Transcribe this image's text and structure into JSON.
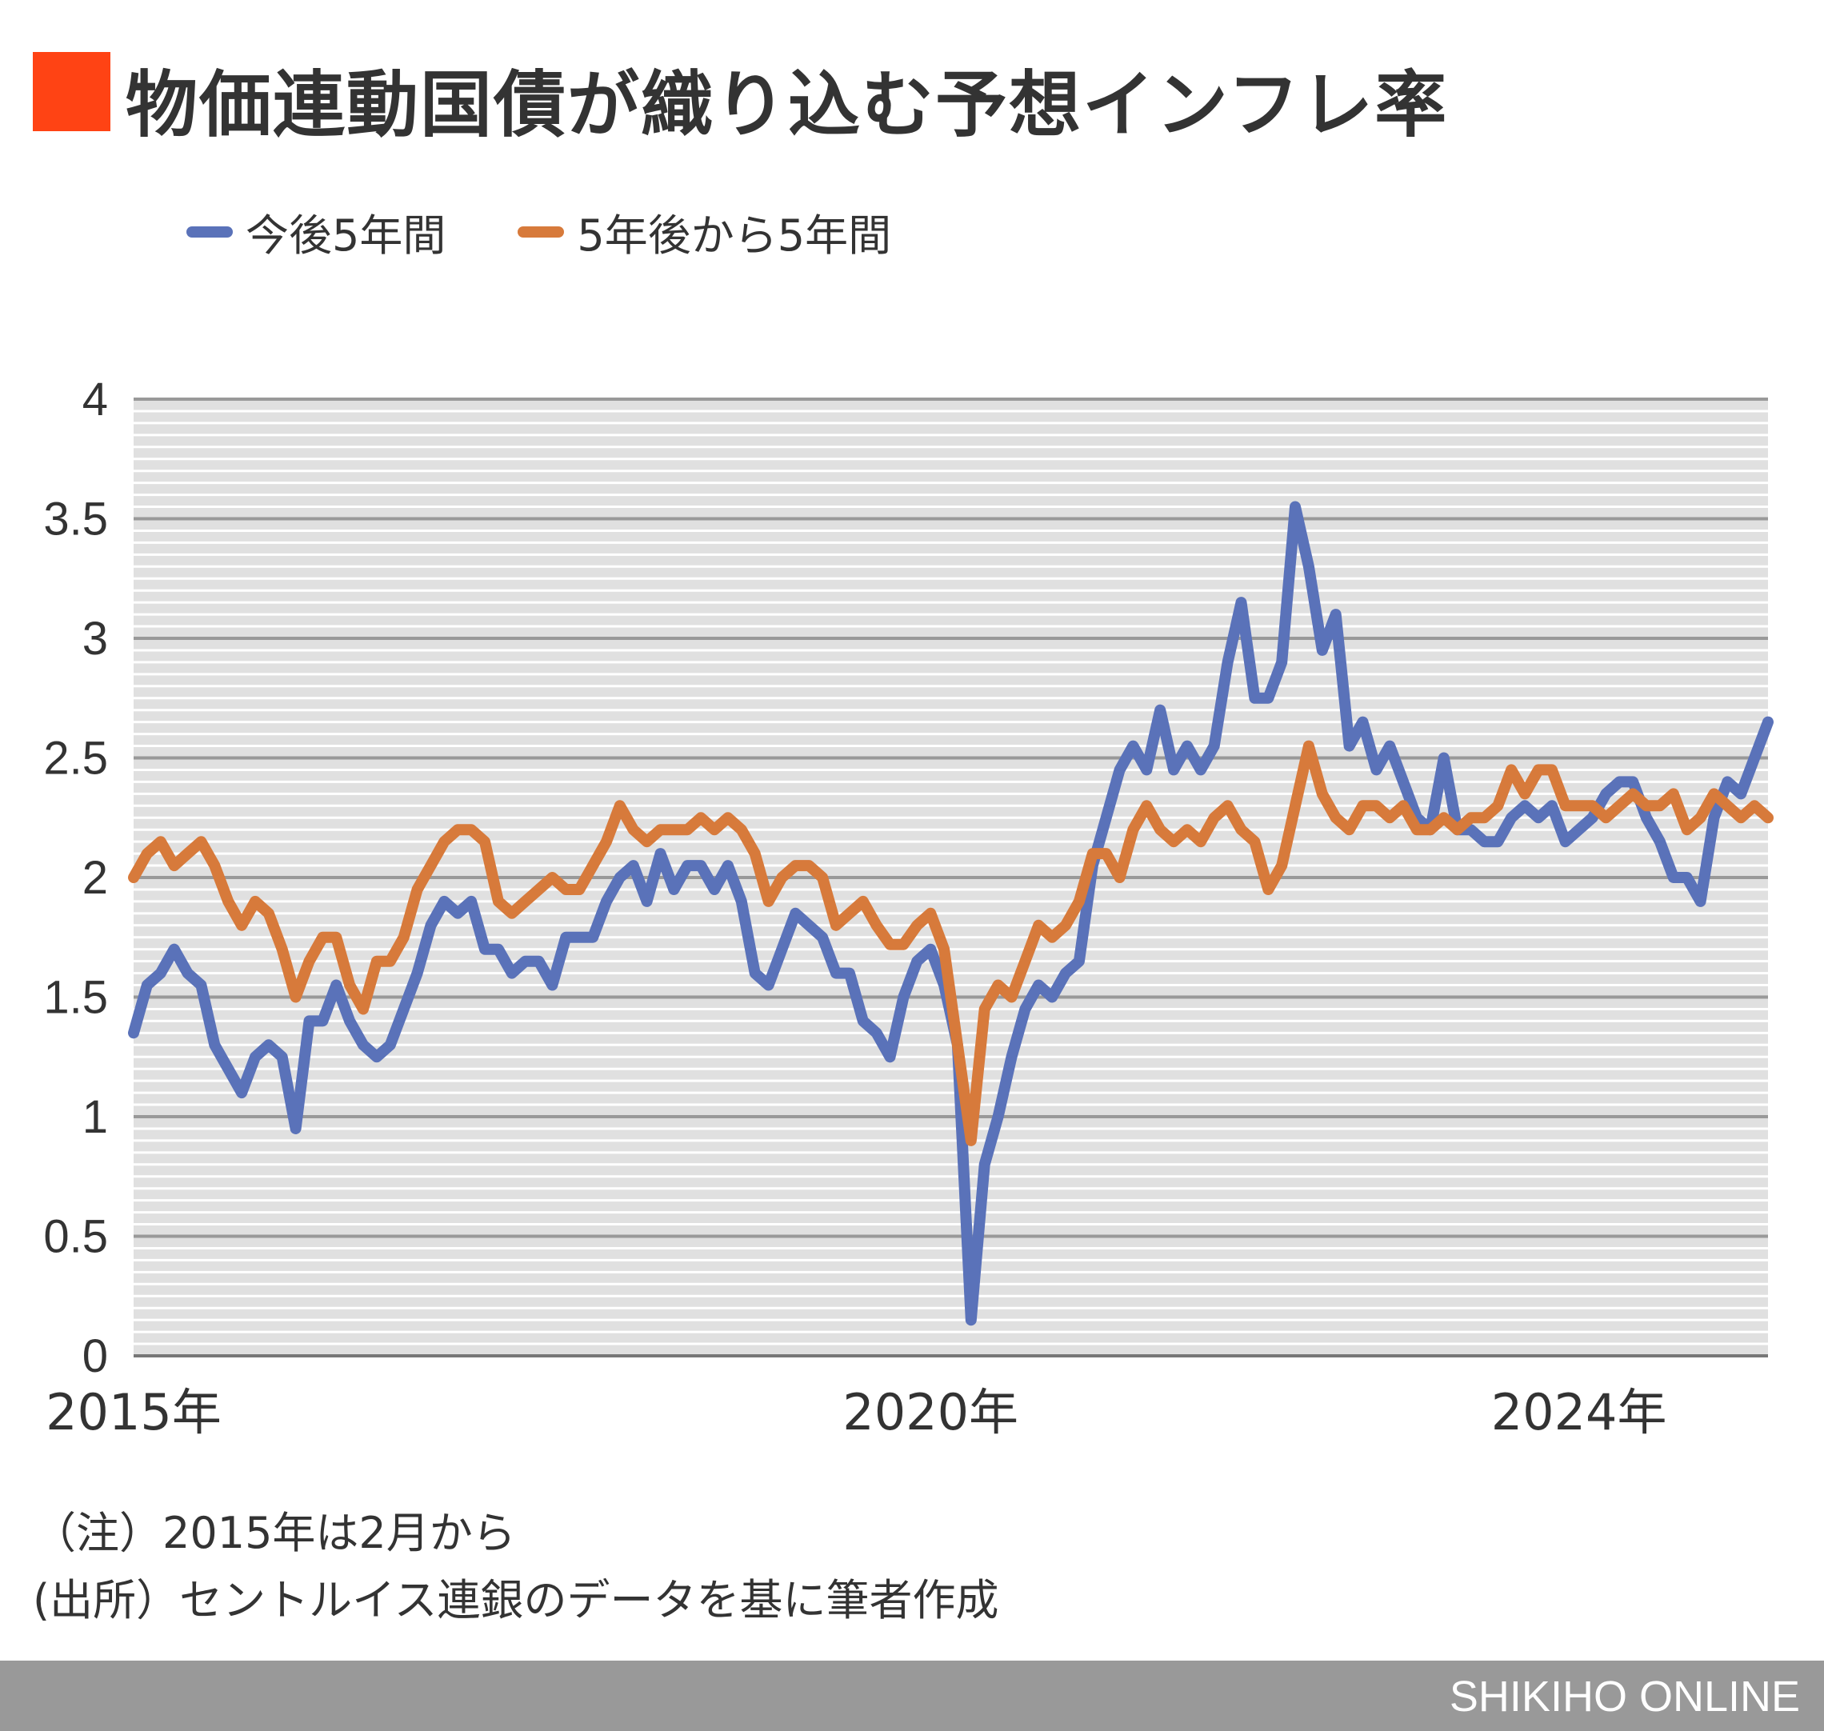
{
  "title": "物価連動国債が織り込む予想インフレ率",
  "accent_color": "#FF4314",
  "chart_data": {
    "type": "line",
    "title": "物価連動国債が織り込む予想インフレ率",
    "xlabel": "",
    "ylabel": "",
    "ylim": [
      0,
      4
    ],
    "y_ticks": [
      "0",
      "0.5",
      "1",
      "1.5",
      "2",
      "2.5",
      "3",
      "3.5",
      "4"
    ],
    "y_tick_values": [
      0,
      0.5,
      1,
      1.5,
      2,
      2.5,
      3,
      3.5,
      4
    ],
    "x_tick_labels": [
      {
        "label": "2015年",
        "date": "2015-02"
      },
      {
        "label": "2020年",
        "date": "2020-01"
      },
      {
        "label": "2024年",
        "date": "2024-01"
      }
    ],
    "x_start": "2015-02",
    "x_end": "2025-03",
    "frequency": "monthly",
    "grid": true,
    "legend_placement": "top-left",
    "series": [
      {
        "name": "今後5年間",
        "color": "#5A72B9",
        "values": [
          1.35,
          1.55,
          1.6,
          1.7,
          1.6,
          1.55,
          1.3,
          1.2,
          1.1,
          1.25,
          1.3,
          1.25,
          0.95,
          1.4,
          1.4,
          1.55,
          1.4,
          1.3,
          1.25,
          1.3,
          1.45,
          1.6,
          1.8,
          1.9,
          1.85,
          1.9,
          1.7,
          1.7,
          1.6,
          1.65,
          1.65,
          1.55,
          1.75,
          1.75,
          1.75,
          1.9,
          2.0,
          2.05,
          1.9,
          2.1,
          1.95,
          2.05,
          2.05,
          1.95,
          2.05,
          1.9,
          1.6,
          1.55,
          1.7,
          1.85,
          1.8,
          1.75,
          1.6,
          1.6,
          1.4,
          1.35,
          1.25,
          1.5,
          1.65,
          1.7,
          1.55,
          1.3,
          0.15,
          0.8,
          1.0,
          1.25,
          1.45,
          1.55,
          1.5,
          1.6,
          1.65,
          2.05,
          2.25,
          2.45,
          2.55,
          2.45,
          2.7,
          2.45,
          2.55,
          2.45,
          2.55,
          2.9,
          3.15,
          2.75,
          2.75,
          2.9,
          3.55,
          3.3,
          2.95,
          3.1,
          2.55,
          2.65,
          2.45,
          2.55,
          2.4,
          2.25,
          2.2,
          2.5,
          2.2,
          2.2,
          2.15,
          2.15,
          2.25,
          2.3,
          2.25,
          2.3,
          2.15,
          2.2,
          2.25,
          2.35,
          2.4,
          2.4,
          2.25,
          2.15,
          2.0,
          2.0,
          1.9,
          2.25,
          2.4,
          2.35,
          2.5,
          2.65
        ]
      },
      {
        "name": "5年後から5年間",
        "color": "#D77A3B",
        "values": [
          2.0,
          2.1,
          2.15,
          2.05,
          2.1,
          2.15,
          2.05,
          1.9,
          1.8,
          1.9,
          1.85,
          1.7,
          1.5,
          1.65,
          1.75,
          1.75,
          1.55,
          1.45,
          1.65,
          1.65,
          1.75,
          1.95,
          2.05,
          2.15,
          2.2,
          2.2,
          2.15,
          1.9,
          1.85,
          1.9,
          1.95,
          2.0,
          1.95,
          1.95,
          2.05,
          2.15,
          2.3,
          2.2,
          2.15,
          2.2,
          2.2,
          2.2,
          2.25,
          2.2,
          2.25,
          2.2,
          2.1,
          1.9,
          2.0,
          2.05,
          2.05,
          2.0,
          1.8,
          1.85,
          1.9,
          1.8,
          1.72,
          1.72,
          1.8,
          1.85,
          1.7,
          1.3,
          0.9,
          1.45,
          1.55,
          1.5,
          1.65,
          1.8,
          1.75,
          1.8,
          1.9,
          2.1,
          2.1,
          2.0,
          2.2,
          2.3,
          2.2,
          2.15,
          2.2,
          2.15,
          2.25,
          2.3,
          2.2,
          2.15,
          1.95,
          2.05,
          2.3,
          2.55,
          2.35,
          2.25,
          2.2,
          2.3,
          2.3,
          2.25,
          2.3,
          2.2,
          2.2,
          2.25,
          2.2,
          2.25,
          2.25,
          2.3,
          2.45,
          2.35,
          2.45,
          2.45,
          2.3,
          2.3,
          2.3,
          2.25,
          2.3,
          2.35,
          2.3,
          2.3,
          2.35,
          2.2,
          2.25,
          2.35,
          2.3,
          2.25,
          2.3,
          2.25
        ]
      }
    ]
  },
  "notes": {
    "note": "（注）2015年は2月から",
    "source": "(出所）セントルイス連銀のデータを基に筆者作成"
  },
  "footer": {
    "brand": "SHIKIHO ONLINE",
    "background": "#999999"
  }
}
